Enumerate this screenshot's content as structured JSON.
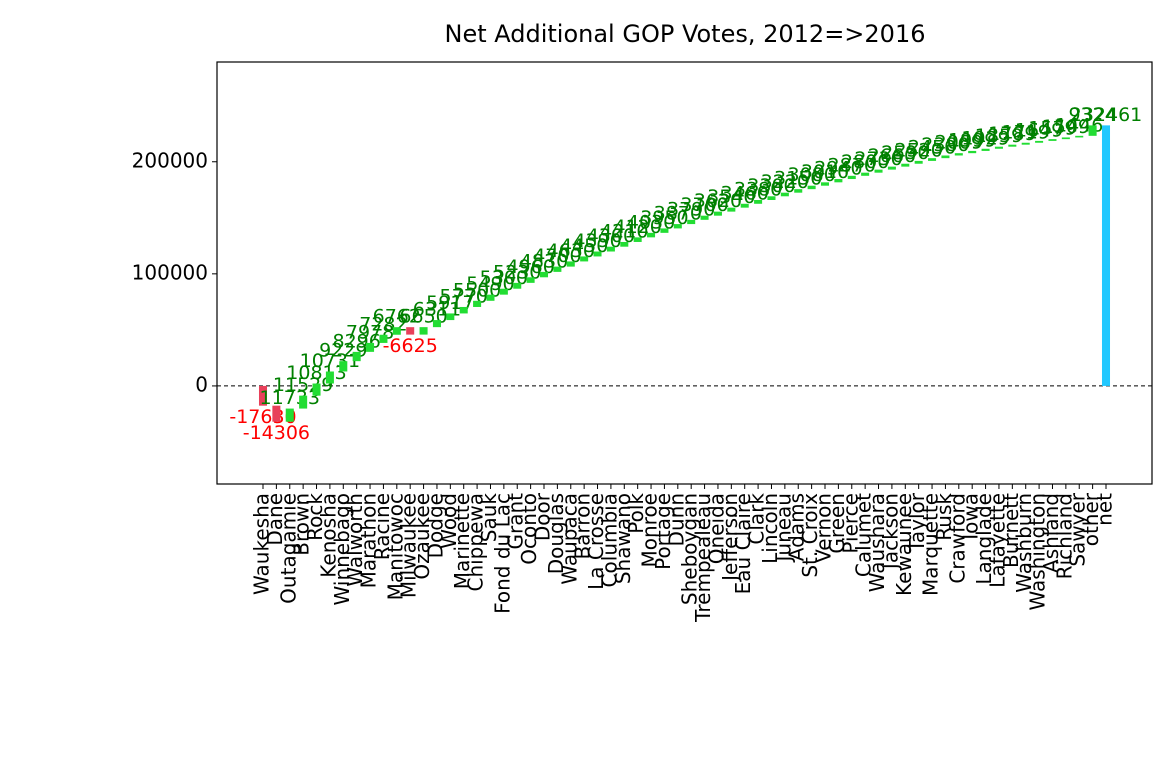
{
  "chart_data": {
    "type": "waterfall",
    "title": "Net Additional GOP Votes, 2012=>2016",
    "categories": [
      "Waukesha",
      "Dane",
      "Outagamie",
      "Brown",
      "Rock",
      "Kenosha",
      "Winnebago",
      "Walworth",
      "Marathon",
      "Racine",
      "Manitowoc",
      "Milwaukee",
      "Ozaukee",
      "Dodge",
      "Wood",
      "Marinette",
      "Chippewa",
      "Sauk",
      "Fond du Lac",
      "Grant",
      "Oconto",
      "Door",
      "Douglas",
      "Waupaca",
      "Barron",
      "La Crosse",
      "Columbia",
      "Shawano",
      "Polk",
      "Monroe",
      "Portage",
      "Dunn",
      "Sheboygan",
      "Trempealeau",
      "Oneida",
      "Jefferson",
      "Eau Claire",
      "Clark",
      "Lincoln",
      "Juneau",
      "Adams",
      "St. Croix",
      "Vernon",
      "Green",
      "Pierce",
      "Calumet",
      "Waushara",
      "Jackson",
      "Kewaunee",
      "Taylor",
      "Marquette",
      "Rusk",
      "Crawford",
      "Iowa",
      "Langlade",
      "Lafayette",
      "Burnett",
      "Washburn",
      "Washington",
      "Ashland",
      "Richland",
      "Sawyer",
      "other",
      "net"
    ],
    "values": [
      -17630,
      -14306,
      11733,
      11529,
      10813,
      10731,
      9229,
      8296,
      7978,
      7282,
      6762,
      -6625,
      6650,
      6311,
      5917,
      5770,
      5500,
      5490,
      5300,
      5230,
      4960,
      4830,
      4700,
      4630,
      4450,
      4390,
      4300,
      4210,
      4120,
      4030,
      3950,
      3870,
      3790,
      3700,
      3620,
      3540,
      3460,
      3380,
      3300,
      3220,
      3150,
      3080,
      3010,
      2940,
      2870,
      2800,
      2730,
      2660,
      2590,
      2520,
      2450,
      2380,
      2069,
      1999,
      1929,
      1859,
      1789,
      1719,
      1649,
      1579,
      1509,
      1446,
      9324,
      232461
    ],
    "increase_color": "#22dd33",
    "decrease_color": "#e8405a",
    "total_color": "#22c8ff",
    "increase_label_color": "#008000",
    "decrease_label_color": "#ff0000",
    "ylim": [
      -87500,
      289000
    ],
    "yticks": [
      0,
      100000,
      200000
    ]
  }
}
